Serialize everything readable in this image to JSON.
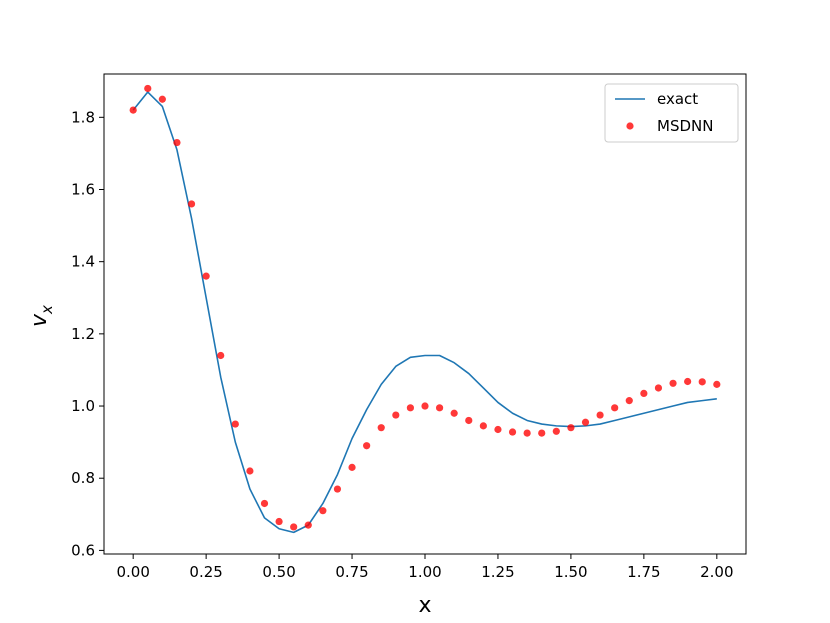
{
  "chart_data": {
    "type": "line",
    "title": "",
    "xlabel": "x",
    "ylabel": "v",
    "ylabel_subscript": "x",
    "xlim": [
      -0.1,
      2.1
    ],
    "ylim": [
      0.59,
      1.92
    ],
    "xticks": [
      0.0,
      0.25,
      0.5,
      0.75,
      1.0,
      1.25,
      1.5,
      1.75,
      2.0
    ],
    "xtick_labels": [
      "0.00",
      "0.25",
      "0.50",
      "0.75",
      "1.00",
      "1.25",
      "1.50",
      "1.75",
      "2.00"
    ],
    "yticks": [
      0.6,
      0.8,
      1.0,
      1.2,
      1.4,
      1.6,
      1.8
    ],
    "ytick_labels": [
      "0.6",
      "0.8",
      "1.0",
      "1.2",
      "1.4",
      "1.6",
      "1.8"
    ],
    "grid": false,
    "legend_position": "top-right",
    "series": [
      {
        "name": "exact",
        "kind": "line",
        "color": "#1f77b4",
        "x": [
          0.0,
          0.05,
          0.1,
          0.15,
          0.2,
          0.25,
          0.3,
          0.35,
          0.4,
          0.45,
          0.5,
          0.55,
          0.6,
          0.65,
          0.7,
          0.75,
          0.8,
          0.85,
          0.9,
          0.95,
          1.0,
          1.05,
          1.1,
          1.15,
          1.2,
          1.25,
          1.3,
          1.35,
          1.4,
          1.45,
          1.5,
          1.55,
          1.6,
          1.65,
          1.7,
          1.75,
          1.8,
          1.85,
          1.9,
          1.95,
          2.0
        ],
        "y": [
          1.82,
          1.87,
          1.83,
          1.71,
          1.52,
          1.3,
          1.08,
          0.9,
          0.77,
          0.69,
          0.66,
          0.65,
          0.67,
          0.73,
          0.81,
          0.91,
          0.99,
          1.06,
          1.11,
          1.135,
          1.14,
          1.14,
          1.12,
          1.09,
          1.05,
          1.01,
          0.98,
          0.96,
          0.95,
          0.945,
          0.943,
          0.945,
          0.95,
          0.96,
          0.97,
          0.98,
          0.99,
          1.0,
          1.01,
          1.015,
          1.02
        ]
      },
      {
        "name": "MSDNN",
        "kind": "scatter",
        "color": "#ff0000",
        "x": [
          0.0,
          0.05,
          0.1,
          0.15,
          0.2,
          0.25,
          0.3,
          0.35,
          0.4,
          0.45,
          0.5,
          0.55,
          0.6,
          0.65,
          0.7,
          0.75,
          0.8,
          0.85,
          0.9,
          0.95,
          1.0,
          1.05,
          1.1,
          1.15,
          1.2,
          1.25,
          1.3,
          1.35,
          1.4,
          1.45,
          1.5,
          1.55,
          1.6,
          1.65,
          1.7,
          1.75,
          1.8,
          1.85,
          1.9,
          1.95,
          2.0
        ],
        "y": [
          1.82,
          1.88,
          1.85,
          1.73,
          1.56,
          1.36,
          1.14,
          0.95,
          0.82,
          0.73,
          0.68,
          0.665,
          0.67,
          0.71,
          0.77,
          0.83,
          0.89,
          0.94,
          0.975,
          0.995,
          1.0,
          0.995,
          0.98,
          0.96,
          0.945,
          0.935,
          0.928,
          0.925,
          0.925,
          0.93,
          0.94,
          0.955,
          0.975,
          0.995,
          1.015,
          1.035,
          1.05,
          1.063,
          1.068,
          1.067,
          1.06
        ]
      }
    ]
  }
}
